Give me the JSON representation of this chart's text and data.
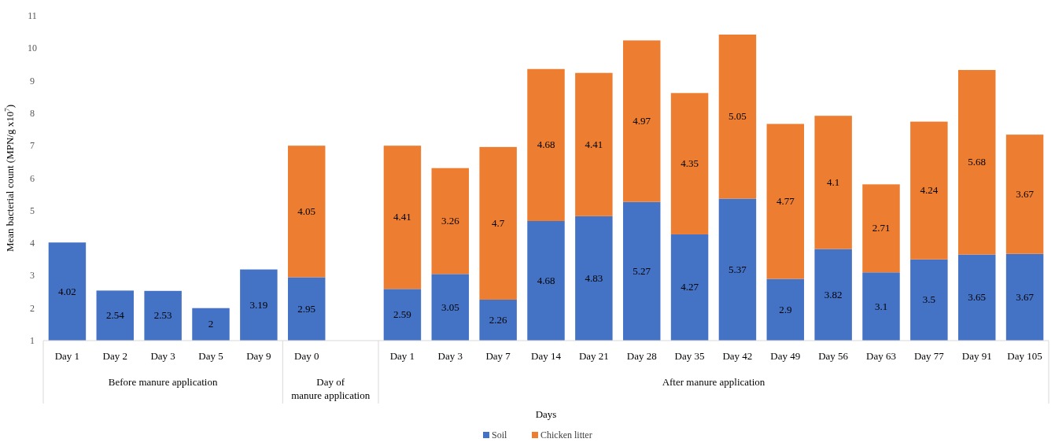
{
  "chart_data": {
    "type": "bar",
    "stacked": true,
    "ylabel": "Mean bacterial count (MPN/g x10$^{7}$)",
    "xlabel": "Days",
    "categories": [
      "Day 1",
      "Day 2",
      "Day 3",
      "Day 5",
      "Day 9",
      "Day 0",
      null,
      "Day 1",
      "Day 3",
      "Day 7",
      "Day 14",
      "Day 21",
      "Day 28",
      "Day 35",
      "Day 42",
      "Day 49",
      "Day 56",
      "Day 63",
      "Day 77",
      "Day 91",
      "Day 105"
    ],
    "series": [
      {
        "name": "Soil",
        "color": "#4472c4",
        "values": [
          4.02,
          2.54,
          2.53,
          2,
          3.19,
          2.95,
          null,
          2.59,
          3.05,
          2.26,
          4.68,
          4.83,
          5.27,
          4.27,
          5.37,
          2.9,
          3.82,
          3.1,
          3.5,
          3.65,
          3.67
        ]
      },
      {
        "name": "Chicken litter",
        "color": "#ed7d31",
        "values": [
          null,
          null,
          null,
          null,
          null,
          4.05,
          null,
          4.41,
          3.26,
          4.7,
          4.68,
          4.41,
          4.97,
          4.35,
          5.05,
          4.77,
          4.1,
          2.71,
          4.24,
          5.68,
          3.67
        ]
      }
    ],
    "annotations": [
      "Before manure application",
      "Day of manure application",
      "After manure application"
    ],
    "ylim": [
      1,
      11
    ],
    "yticks": [
      1,
      2,
      3,
      4,
      5,
      6,
      7,
      8,
      9,
      10,
      11
    ],
    "data_labels": true,
    "legend": "bottom"
  }
}
